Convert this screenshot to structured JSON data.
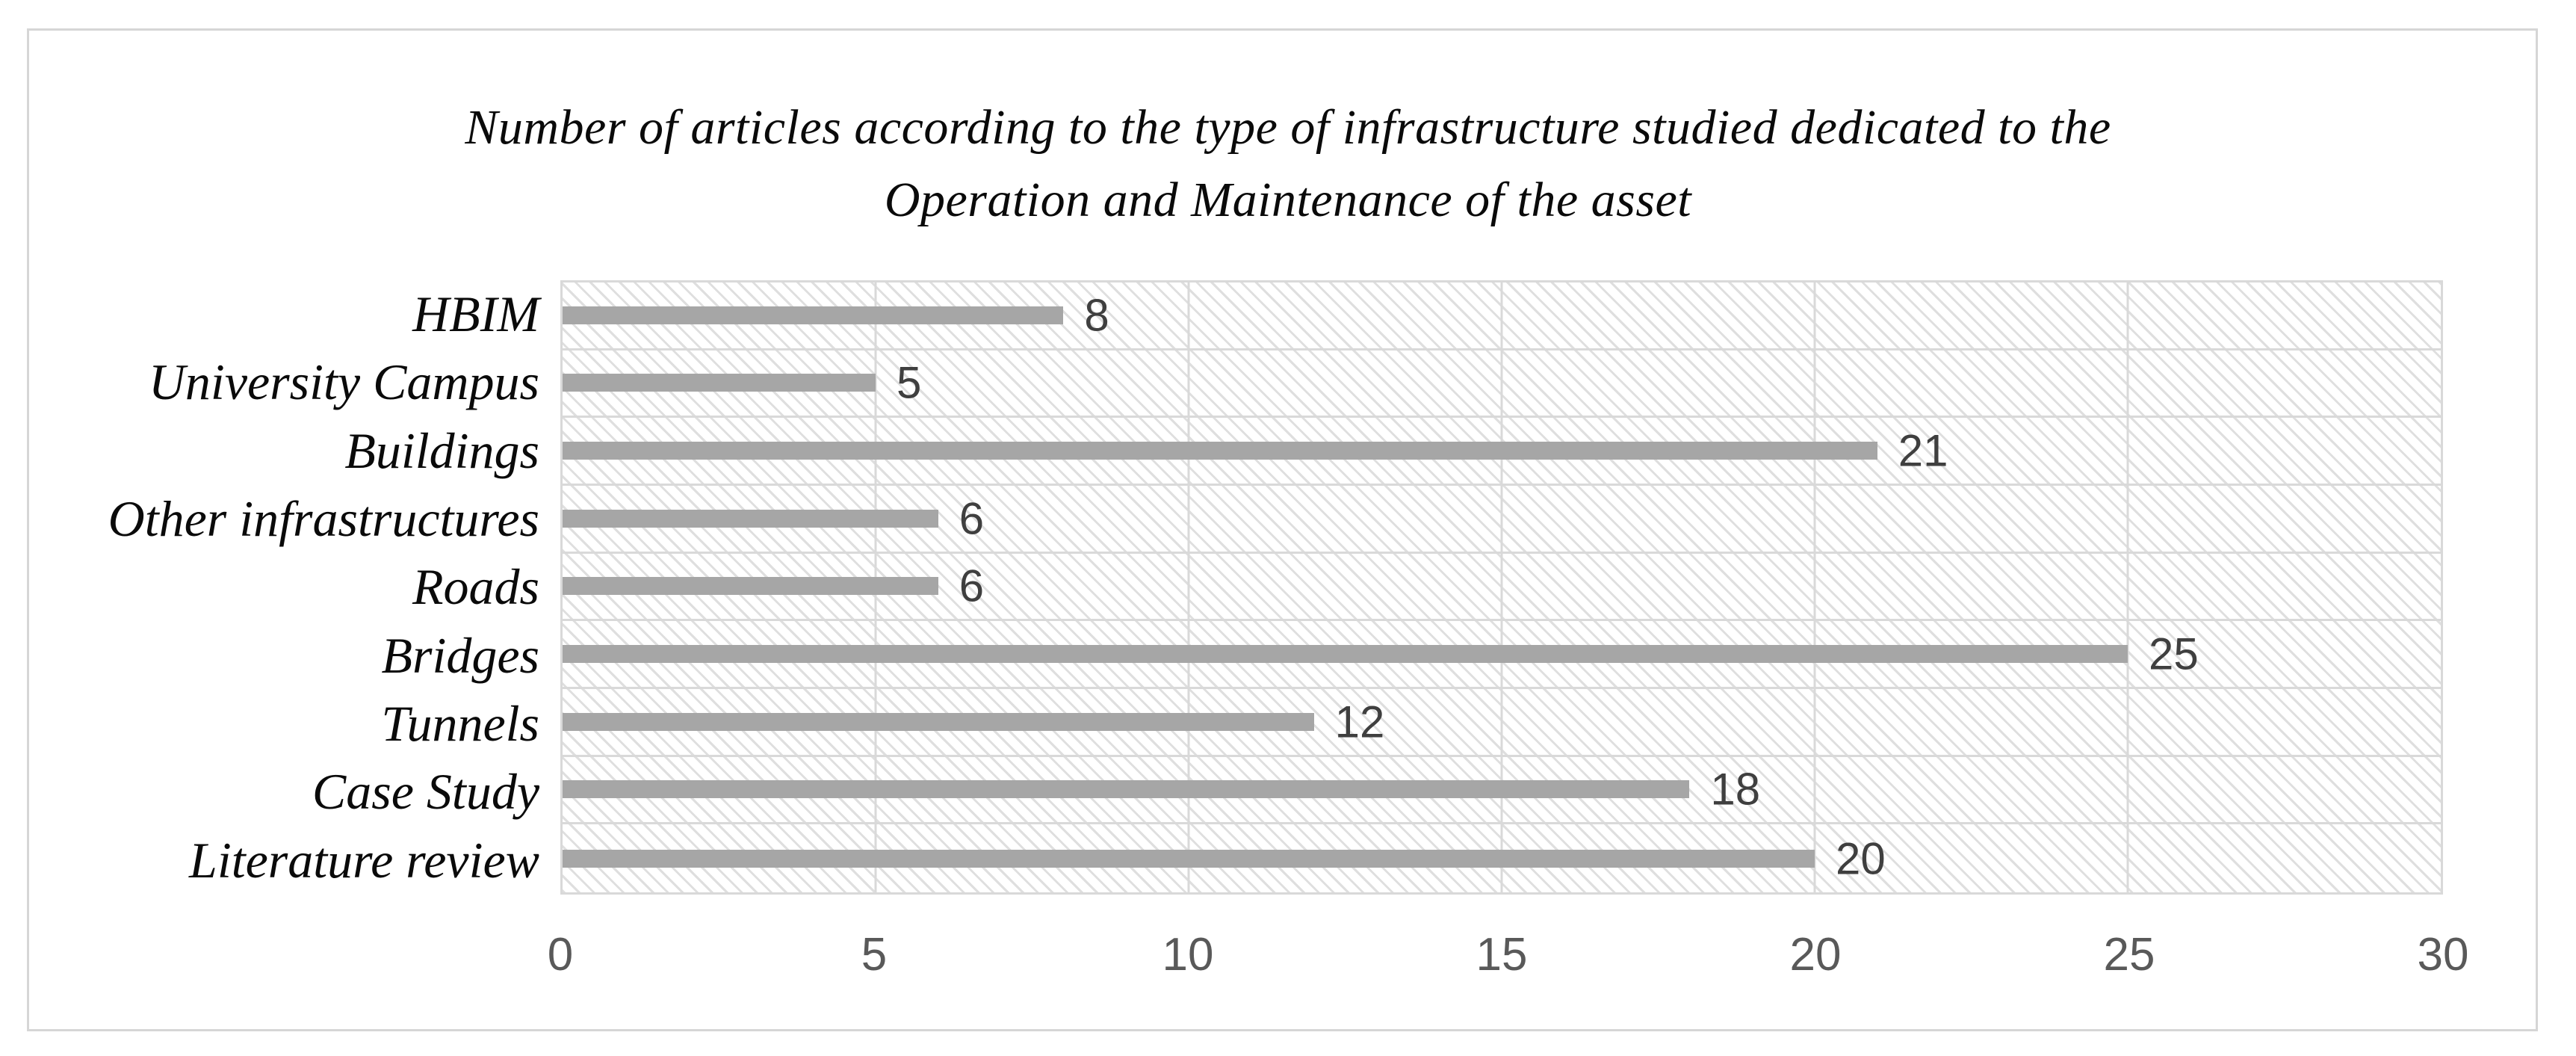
{
  "title": {
    "line1": "Number of articles according to the type of infrastructure studied dedicated to the",
    "line2": "Operation and Maintenance of the asset"
  },
  "chart_data": {
    "type": "bar",
    "orientation": "horizontal",
    "title": "Number of articles according to the type of infrastructure studied dedicated to the Operation and Maintenance of the asset",
    "categories": [
      "HBIM",
      "University Campus",
      "Buildings",
      "Other infrastructures",
      "Roads",
      "Bridges",
      "Tunnels",
      "Case Study",
      "Literature review"
    ],
    "values": [
      8,
      5,
      21,
      6,
      6,
      25,
      12,
      18,
      20
    ],
    "xlabel": "",
    "ylabel": "",
    "xlim": [
      0,
      30
    ],
    "x_ticks": [
      0,
      5,
      10,
      15,
      20,
      25,
      30
    ],
    "grid": true,
    "legend": false,
    "data_labels": true,
    "plot_area_fill": "light-downward-diagonal-hatch"
  },
  "colors": {
    "bar": "#a6a6a6",
    "gridline": "#d9d9d9",
    "hatch": "#dcdcdc",
    "tick_text": "#595959",
    "data_label_text": "#3f3f3f",
    "title_text": "#0a0a0a",
    "outer_border": "#d6d6d6"
  }
}
